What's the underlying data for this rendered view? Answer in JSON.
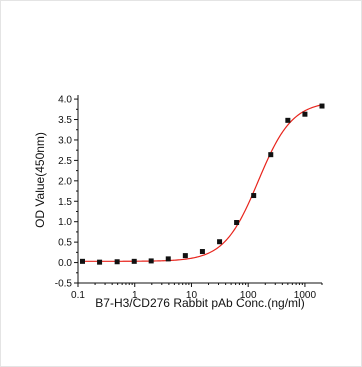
{
  "chart_data": {
    "type": "scatter",
    "title": "",
    "xlabel": "B7-H3/CD276 Rabbit pAb Conc.(ng/ml)",
    "ylabel": "OD Value(450nm)",
    "x_scale": "log",
    "xlim": [
      0.1,
      2000
    ],
    "ylim": [
      -0.5,
      4.1
    ],
    "x_ticks": [
      "0.1",
      "1",
      "10",
      "100",
      "1000"
    ],
    "y_ticks": [
      "-0.5",
      "0.0",
      "0.5",
      "1.0",
      "1.5",
      "2.0",
      "2.5",
      "3.0",
      "3.5",
      "4.0"
    ],
    "grid": false,
    "legend": "none",
    "marker_color": "#111111",
    "fit_color": "#e8241c",
    "series": [
      {
        "kind": "points",
        "x": [
          0.12,
          0.24,
          0.49,
          0.98,
          1.95,
          3.9,
          7.8,
          15.6,
          31.3,
          62.5,
          125,
          250,
          500,
          1000,
          2000
        ],
        "y": [
          0.03,
          0.01,
          0.02,
          0.03,
          0.04,
          0.09,
          0.17,
          0.27,
          0.51,
          0.98,
          1.64,
          2.64,
          3.48,
          3.63,
          3.83
        ]
      },
      {
        "kind": "fit",
        "model": "4PL",
        "bottom": 0.03,
        "top": 3.95,
        "ec50": 150,
        "hill": 1.45
      }
    ]
  }
}
